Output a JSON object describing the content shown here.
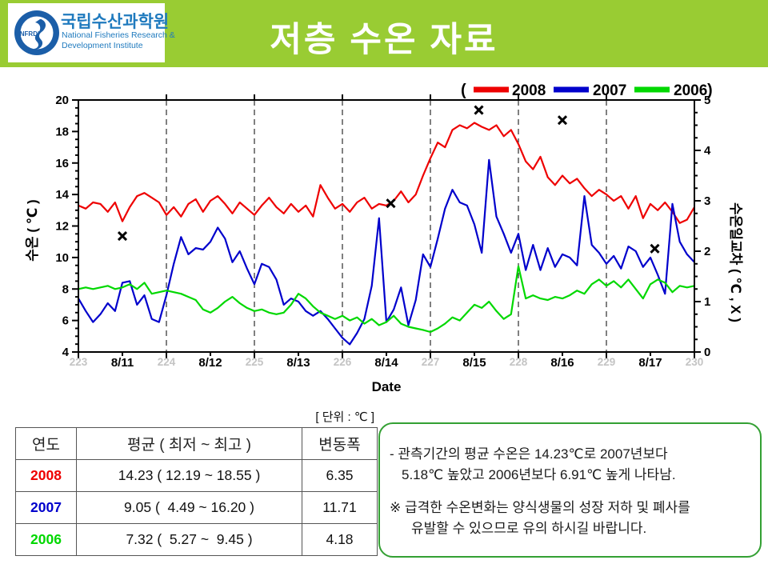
{
  "header": {
    "title": "저층 수온 자료",
    "bg_color": "#99CC33",
    "logo": {
      "seal_text": "NFRDI",
      "korean": "국립수산과학원",
      "english_line1": "National Fisheries Research &",
      "english_line2": "Development Institute",
      "blue": "#1F7ABE"
    }
  },
  "chart_data": {
    "type": "line",
    "x_axis": {
      "label": "Date",
      "range": [
        223,
        230
      ],
      "day_numbers": [
        "223",
        "224",
        "225",
        "226",
        "227",
        "228",
        "229",
        "230"
      ],
      "date_labels": [
        "8/11",
        "8/12",
        "8/13",
        "8/14",
        "8/15",
        "8/16",
        "8/17"
      ],
      "day_number_color": "#C4C4C4"
    },
    "y_left": {
      "label": "수온 ( ℃ )",
      "range": [
        4,
        20
      ],
      "ticks": [
        4,
        6,
        8,
        10,
        12,
        14,
        16,
        18,
        20
      ]
    },
    "y_right": {
      "label": "수온일교차 ( ℃ , X )",
      "range": [
        0,
        5
      ],
      "ticks": [
        0,
        1,
        2,
        3,
        4,
        5
      ]
    },
    "legend": {
      "open": "(",
      "close": ")",
      "entries": [
        {
          "label": "2008",
          "color": "#EE0000"
        },
        {
          "label": "2007",
          "color": "#0000CC"
        },
        {
          "label": "2006",
          "color": "#00D800"
        }
      ]
    },
    "x_start": 223,
    "x_step_days": 0.0833333,
    "series": [
      {
        "name": "2008",
        "color": "#EE0000",
        "values": [
          13.3,
          13.1,
          13.5,
          13.4,
          12.9,
          13.5,
          12.3,
          13.2,
          13.9,
          14.1,
          13.8,
          13.5,
          12.7,
          13.2,
          12.6,
          13.4,
          13.7,
          12.9,
          13.6,
          13.9,
          13.4,
          12.8,
          13.5,
          13.1,
          12.7,
          13.3,
          13.8,
          13.2,
          12.8,
          13.4,
          12.9,
          13.3,
          12.6,
          14.6,
          13.8,
          13.1,
          13.4,
          12.9,
          13.5,
          13.8,
          13.1,
          13.4,
          13.3,
          13.6,
          14.2,
          13.5,
          14.0,
          15.2,
          16.3,
          17.3,
          17.0,
          18.1,
          18.4,
          18.2,
          18.55,
          18.3,
          18.1,
          18.4,
          17.7,
          18.1,
          17.2,
          16.1,
          15.6,
          16.4,
          15.1,
          14.6,
          15.2,
          14.7,
          15.0,
          14.4,
          13.9,
          14.3,
          14.0,
          13.6,
          13.9,
          13.1,
          13.9,
          12.5,
          13.4,
          13.0,
          13.5,
          12.9,
          12.19,
          12.4,
          13.2
        ]
      },
      {
        "name": "2007",
        "color": "#0000CC",
        "values": [
          7.4,
          6.6,
          5.9,
          6.4,
          7.1,
          6.6,
          8.4,
          8.5,
          7.0,
          7.6,
          6.1,
          5.9,
          7.6,
          9.6,
          11.3,
          10.2,
          10.6,
          10.5,
          11.0,
          11.9,
          11.2,
          9.7,
          10.4,
          9.3,
          8.3,
          9.6,
          9.4,
          8.6,
          7.0,
          7.4,
          7.2,
          6.6,
          6.3,
          6.6,
          6.1,
          5.5,
          4.9,
          4.49,
          5.2,
          6.1,
          8.2,
          12.5,
          5.9,
          6.7,
          8.1,
          5.7,
          7.3,
          10.2,
          9.4,
          11.2,
          13.1,
          14.3,
          13.5,
          13.3,
          12.1,
          10.3,
          16.2,
          12.6,
          11.5,
          10.3,
          11.5,
          9.2,
          10.8,
          9.2,
          10.6,
          9.4,
          10.2,
          10.0,
          9.5,
          13.9,
          10.8,
          10.3,
          9.6,
          10.1,
          9.3,
          10.7,
          10.4,
          9.4,
          10.0,
          8.9,
          7.7,
          13.4,
          11.0,
          10.2,
          9.7
        ]
      },
      {
        "name": "2006",
        "color": "#00D800",
        "values": [
          8.0,
          8.1,
          8.0,
          8.1,
          8.2,
          8.0,
          8.1,
          8.3,
          8.0,
          8.4,
          7.7,
          7.8,
          7.9,
          7.8,
          7.7,
          7.5,
          7.3,
          6.7,
          6.5,
          6.8,
          7.2,
          7.5,
          7.1,
          6.8,
          6.6,
          6.7,
          6.5,
          6.4,
          6.5,
          7.0,
          7.7,
          7.4,
          6.9,
          6.5,
          6.3,
          6.1,
          6.3,
          6.0,
          6.2,
          5.8,
          6.1,
          5.7,
          5.9,
          6.3,
          5.8,
          5.6,
          5.5,
          5.4,
          5.27,
          5.5,
          5.8,
          6.2,
          6.0,
          6.5,
          7.0,
          6.8,
          7.2,
          6.6,
          6.1,
          6.4,
          9.45,
          7.4,
          7.6,
          7.4,
          7.3,
          7.5,
          7.4,
          7.6,
          7.9,
          7.7,
          8.3,
          8.6,
          8.2,
          8.5,
          8.1,
          8.6,
          8.0,
          7.4,
          8.3,
          8.6,
          8.4,
          7.8,
          8.2,
          8.1,
          8.2
        ]
      }
    ],
    "range_markers": {
      "symbol": "x",
      "axis": "right",
      "color": "#000000",
      "points": [
        {
          "x": 223.5,
          "value": 2.3
        },
        {
          "x": 226.55,
          "value": 2.95
        },
        {
          "x": 227.55,
          "value": 4.8
        },
        {
          "x": 228.5,
          "value": 4.6
        },
        {
          "x": 229.55,
          "value": 2.05
        }
      ]
    },
    "grid": "vertical-dashed-daily"
  },
  "table": {
    "unit_caption": "[ 단위 : ℃ ]",
    "headers": [
      "연도",
      "평균 ( 최저 ~ 최고 )",
      "변동폭"
    ],
    "rows": [
      {
        "year": "2008",
        "color": "#EE0000",
        "stats": "14.23 ( 12.19 ~ 18.55 )",
        "range": "6.35"
      },
      {
        "year": "2007",
        "color": "#0000CC",
        "stats": "9.05 (  4.49 ~ 16.20 )",
        "range": "11.71"
      },
      {
        "year": "2006",
        "color": "#00D800",
        "stats": "7.32 (  5.27 ~  9.45 )",
        "range": "4.18"
      }
    ]
  },
  "note_box": {
    "border_color": "#33A033",
    "para1": [
      "- 관측기간의 평균 수온은 14.23℃로 2007년보다",
      "5.18℃ 높았고 2006년보다 6.91℃ 높게 나타남."
    ],
    "para2": [
      "※ 급격한 수온변화는 양식생물의 성장 저하 및 폐사를",
      "유발할 수 있으므로 유의 하시길 바랍니다."
    ]
  }
}
